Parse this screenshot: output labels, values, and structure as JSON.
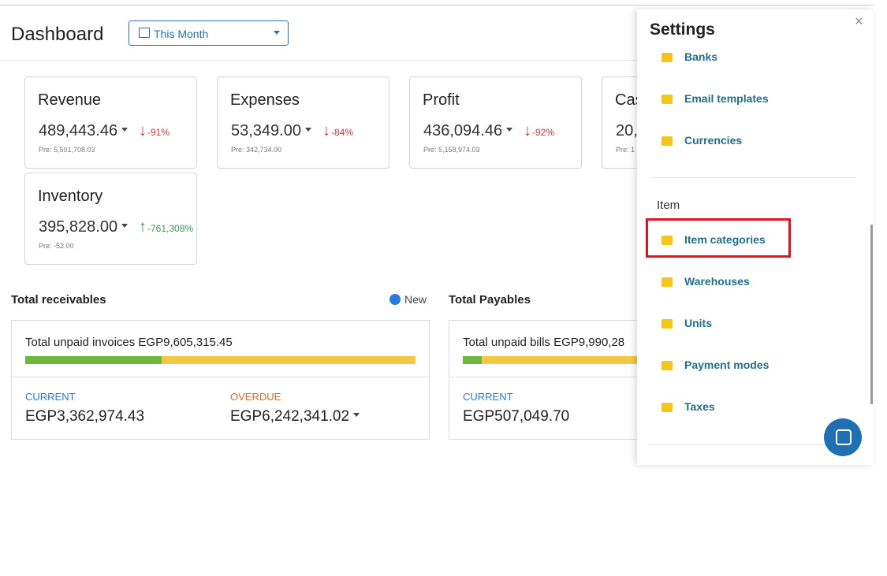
{
  "header": {
    "title": "Dashboard",
    "period": "This Month"
  },
  "cards": [
    {
      "title": "Revenue",
      "value": "489,443.46",
      "change": "-91%",
      "previous": "Pre: 5,501,708.03",
      "trend": "down"
    },
    {
      "title": "Expenses",
      "value": "53,349.00",
      "change": "-84%",
      "previous": "Pre: 342,734.00",
      "trend": "down"
    },
    {
      "title": "Profit",
      "value": "436,094.46",
      "change": "-92%",
      "previous": "Pre: 5,158,974.03",
      "trend": "down"
    },
    {
      "title": "Cas",
      "value": "20,",
      "change": "",
      "previous": "Pre: 1",
      "trend": "none"
    },
    {
      "title": "Inventory",
      "value": "395,828.00",
      "change": "-761,308%",
      "previous": "Pre: -52.00",
      "trend": "up"
    }
  ],
  "receivables": {
    "title": "Total receivables",
    "new": "New",
    "total": "Total unpaid invoices EGP9,605,315.45",
    "current_label": "CURRENT",
    "current": "EGP3,362,974.43",
    "overdue_label": "OVERDUE",
    "overdue": "EGP6,242,341.02"
  },
  "payables": {
    "title": "Total Payables",
    "total": "Total unpaid bills EGP9,990,28",
    "current_label": "CURRENT",
    "current": "EGP507,049.70"
  },
  "settings": {
    "title": "Settings",
    "items": [
      "Banks",
      "Email templates",
      "Currencies"
    ],
    "section": "Item",
    "section_items": [
      "Item categories",
      "Warehouses",
      "Units",
      "Payment modes",
      "Taxes"
    ]
  }
}
